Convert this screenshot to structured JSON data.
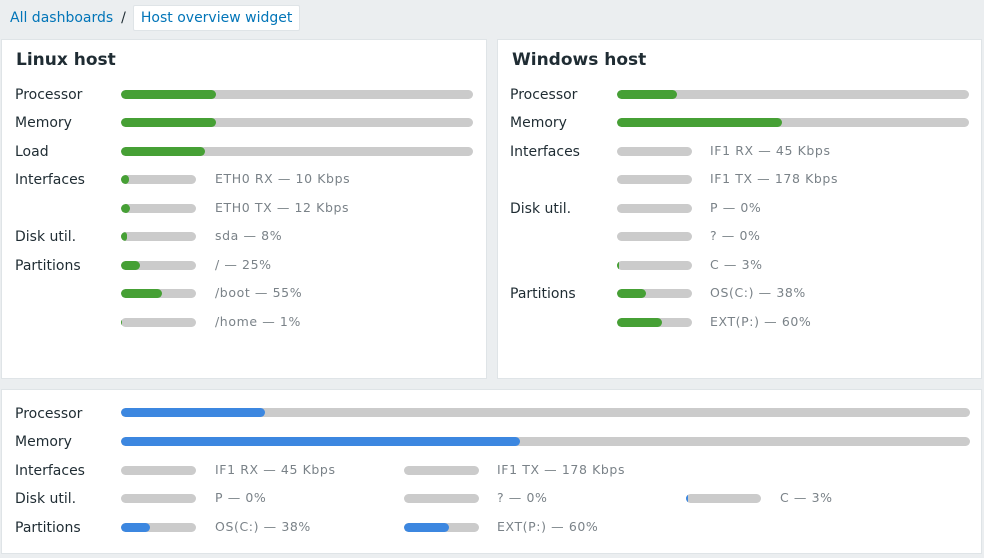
{
  "breadcrumb": {
    "root": "All dashboards",
    "separator": "/",
    "current": "Host overview widget"
  },
  "colors": {
    "green": "#46a035",
    "blue": "#3c87e0",
    "track": "#cbcbcb",
    "link": "#0275b8"
  },
  "linux": {
    "title": "Linux host",
    "labels": {
      "processor": "Processor",
      "memory": "Memory",
      "load": "Load",
      "interfaces": "Interfaces",
      "disk": "Disk util.",
      "partitions": "Partitions"
    },
    "processor": 0.27,
    "memory": 0.27,
    "load": 0.24,
    "items": [
      {
        "text": "ETH0 RX — 10 Kbps",
        "fraction": 0.1
      },
      {
        "text": "ETH0 TX — 12 Kbps",
        "fraction": 0.12
      },
      {
        "text": "sda — 8%",
        "fraction": 0.08
      },
      {
        "text": "/ — 25%",
        "fraction": 0.25
      },
      {
        "text": "/boot — 55%",
        "fraction": 0.55
      },
      {
        "text": "/home — 1%",
        "fraction": 0.01
      }
    ]
  },
  "windows": {
    "title": "Windows host",
    "labels": {
      "processor": "Processor",
      "memory": "Memory",
      "interfaces": "Interfaces",
      "disk": "Disk util.",
      "partitions": "Partitions"
    },
    "processor": 0.17,
    "memory": 0.47,
    "items": [
      {
        "text": "IF1 RX — 45 Kbps",
        "fraction": 0.0
      },
      {
        "text": "IF1 TX — 178 Kbps",
        "fraction": 0.0
      },
      {
        "text": "P — 0%",
        "fraction": 0.0
      },
      {
        "text": "? — 0%",
        "fraction": 0.0
      },
      {
        "text": "C — 3%",
        "fraction": 0.03
      },
      {
        "text": "OS(C:) — 38%",
        "fraction": 0.38
      },
      {
        "text": "EXT(P:) — 60%",
        "fraction": 0.6
      }
    ]
  },
  "summary": {
    "labels": {
      "processor": "Processor",
      "memory": "Memory",
      "interfaces": "Interfaces",
      "disk": "Disk util.",
      "partitions": "Partitions"
    },
    "processor": 0.17,
    "memory": 0.47,
    "items": [
      {
        "text": "IF1 RX — 45 Kbps",
        "fraction": 0.0
      },
      {
        "text": "IF1 TX — 178 Kbps",
        "fraction": 0.0
      },
      {
        "text": "P — 0%",
        "fraction": 0.0
      },
      {
        "text": "? — 0%",
        "fraction": 0.0
      },
      {
        "text": "C — 3%",
        "fraction": 0.03
      },
      {
        "text": "OS(C:) — 38%",
        "fraction": 0.38
      },
      {
        "text": "EXT(P:) — 60%",
        "fraction": 0.6
      }
    ]
  }
}
